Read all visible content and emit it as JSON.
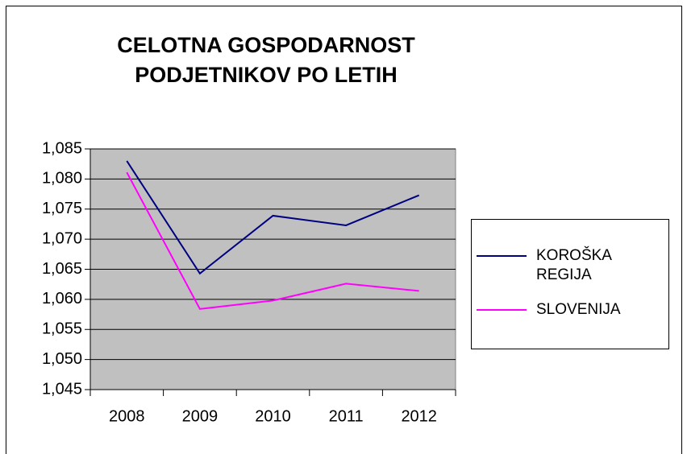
{
  "chart_data": {
    "type": "line",
    "title": "CELOTNA GOSPODARNOST PODJETNIKOV PO LETIH",
    "categories": [
      "2008",
      "2009",
      "2010",
      "2011",
      "2012"
    ],
    "series": [
      {
        "name": "KOROŠKA REGIJA",
        "color": "#000080",
        "values": [
          1.083,
          1.0643,
          1.0739,
          1.0723,
          1.0773
        ]
      },
      {
        "name": "SLOVENIJA",
        "color": "#ff00ff",
        "values": [
          1.0811,
          1.0584,
          1.0598,
          1.0626,
          1.0614
        ]
      }
    ],
    "ylim": [
      1.045,
      1.085
    ],
    "yticks": [
      {
        "value": 1.045,
        "label": "1,045"
      },
      {
        "value": 1.05,
        "label": "1,050"
      },
      {
        "value": 1.055,
        "label": "1,055"
      },
      {
        "value": 1.06,
        "label": "1,060"
      },
      {
        "value": 1.065,
        "label": "1,065"
      },
      {
        "value": 1.07,
        "label": "1,070"
      },
      {
        "value": 1.075,
        "label": "1,075"
      },
      {
        "value": 1.08,
        "label": "1,080"
      },
      {
        "value": 1.085,
        "label": "1,085"
      }
    ],
    "grid": true,
    "plot_background": "#c0c0c0",
    "legend": "right"
  }
}
